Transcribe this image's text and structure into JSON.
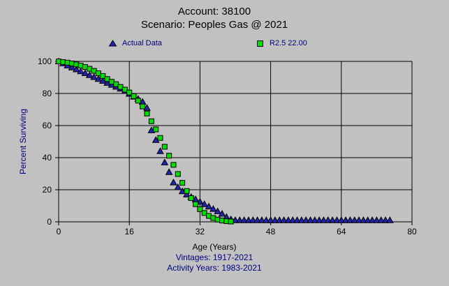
{
  "title": {
    "line1": "Account: 38100",
    "line2": "Scenario: Peoples Gas @ 2021"
  },
  "legend": [
    {
      "label": "Actual Data",
      "marker": "triangle",
      "color": "#2222b2"
    },
    {
      "label": "R2.5 22.00",
      "marker": "square",
      "color": "#00dd00"
    }
  ],
  "axes": {
    "y_label": "Percent Surviving",
    "x_label": "Age (Years)"
  },
  "footer": {
    "vintages": "Vintages: 1917-2021",
    "activity_years": "Activity Years: 1983-2021"
  },
  "colors": {
    "background": "#c1c1c1",
    "grid": "#000000",
    "title_text": "#000000",
    "navy_text": "#000080",
    "actual_marker": "#2222b2",
    "curve_marker": "#00dd00"
  },
  "chart_data": {
    "type": "scatter",
    "title": "Account: 38100 / Scenario: Peoples Gas @ 2021",
    "xlabel": "Age (Years)",
    "ylabel": "Percent Surviving",
    "xlim": [
      0,
      80
    ],
    "ylim": [
      0,
      100
    ],
    "x_ticks": [
      0,
      16,
      32,
      48,
      64,
      80
    ],
    "y_ticks": [
      0,
      20,
      40,
      60,
      80,
      100
    ],
    "grid": true,
    "legend_position": "top",
    "series": [
      {
        "name": "Actual Data",
        "marker": "triangle",
        "color": "#2222b2",
        "points": [
          [
            0,
            100
          ],
          [
            1,
            98.7
          ],
          [
            2,
            97.4
          ],
          [
            3,
            96.2
          ],
          [
            4,
            95.0
          ],
          [
            5,
            93.8
          ],
          [
            6,
            92.6
          ],
          [
            7,
            91.4
          ],
          [
            8,
            90.2
          ],
          [
            9,
            89.0
          ],
          [
            10,
            87.8
          ],
          [
            11,
            86.6
          ],
          [
            12,
            85.4
          ],
          [
            13,
            84.2
          ],
          [
            14,
            83.0
          ],
          [
            15,
            81.5
          ],
          [
            16,
            79.8
          ],
          [
            17,
            78.0
          ],
          [
            18,
            76.6
          ],
          [
            19,
            74.8
          ],
          [
            20,
            71.0
          ],
          [
            21,
            57.0
          ],
          [
            22,
            51.0
          ],
          [
            23,
            44.0
          ],
          [
            24,
            37.0
          ],
          [
            25,
            31.0
          ],
          [
            26,
            24.5
          ],
          [
            27,
            21.5
          ],
          [
            28,
            19.0
          ],
          [
            29,
            17.0
          ],
          [
            30,
            15.5
          ],
          [
            31,
            14.0
          ],
          [
            32,
            12.5
          ],
          [
            33,
            11.0
          ],
          [
            34,
            9.5
          ],
          [
            35,
            8.0
          ],
          [
            36,
            6.5
          ],
          [
            37,
            5.0
          ],
          [
            38,
            3.0
          ],
          [
            39,
            1.5
          ],
          [
            40,
            1.0
          ],
          [
            41,
            1.0
          ],
          [
            42,
            1.0
          ],
          [
            43,
            1.0
          ],
          [
            44,
            1.0
          ],
          [
            45,
            1.0
          ],
          [
            46,
            1.0
          ],
          [
            47,
            1.0
          ],
          [
            48,
            1.0
          ],
          [
            49,
            1.0
          ],
          [
            50,
            1.0
          ],
          [
            51,
            1.0
          ],
          [
            52,
            1.0
          ],
          [
            53,
            1.0
          ],
          [
            54,
            1.0
          ],
          [
            55,
            1.0
          ],
          [
            56,
            1.0
          ],
          [
            57,
            1.0
          ],
          [
            58,
            1.0
          ],
          [
            59,
            1.0
          ],
          [
            60,
            1.0
          ],
          [
            61,
            1.0
          ],
          [
            62,
            1.0
          ],
          [
            63,
            1.0
          ],
          [
            64,
            1.0
          ],
          [
            65,
            1.0
          ],
          [
            66,
            1.0
          ],
          [
            67,
            1.0
          ],
          [
            68,
            1.0
          ],
          [
            69,
            1.0
          ],
          [
            70,
            1.0
          ],
          [
            71,
            1.0
          ],
          [
            72,
            1.0
          ],
          [
            73,
            1.0
          ],
          [
            74,
            1.0
          ],
          [
            75,
            1.0
          ]
        ]
      },
      {
        "name": "R2.5 22.00",
        "marker": "square",
        "color": "#00dd00",
        "points": [
          [
            0,
            100
          ],
          [
            1,
            99.6
          ],
          [
            2,
            99.2
          ],
          [
            3,
            98.7
          ],
          [
            4,
            98.1
          ],
          [
            5,
            97.4
          ],
          [
            6,
            96.5
          ],
          [
            7,
            95.4
          ],
          [
            8,
            94.1
          ],
          [
            9,
            92.6
          ],
          [
            10,
            90.9
          ],
          [
            11,
            89.0
          ],
          [
            12,
            87.3
          ],
          [
            13,
            85.8
          ],
          [
            14,
            84.1
          ],
          [
            15,
            82.4
          ],
          [
            16,
            80.6
          ],
          [
            17,
            78.3
          ],
          [
            18,
            75.5
          ],
          [
            19,
            71.9
          ],
          [
            20,
            67.5
          ],
          [
            21,
            62.7
          ],
          [
            22,
            57.6
          ],
          [
            23,
            52.3
          ],
          [
            24,
            46.8
          ],
          [
            25,
            41.2
          ],
          [
            26,
            35.5
          ],
          [
            27,
            29.8
          ],
          [
            28,
            24.3
          ],
          [
            29,
            19.2
          ],
          [
            30,
            14.8
          ],
          [
            31,
            11.0
          ],
          [
            32,
            7.9
          ],
          [
            33,
            5.5
          ],
          [
            34,
            3.7
          ],
          [
            35,
            2.4
          ],
          [
            36,
            1.4
          ],
          [
            37,
            0.8
          ],
          [
            38,
            0.4
          ],
          [
            39,
            0.2
          ]
        ]
      }
    ]
  }
}
